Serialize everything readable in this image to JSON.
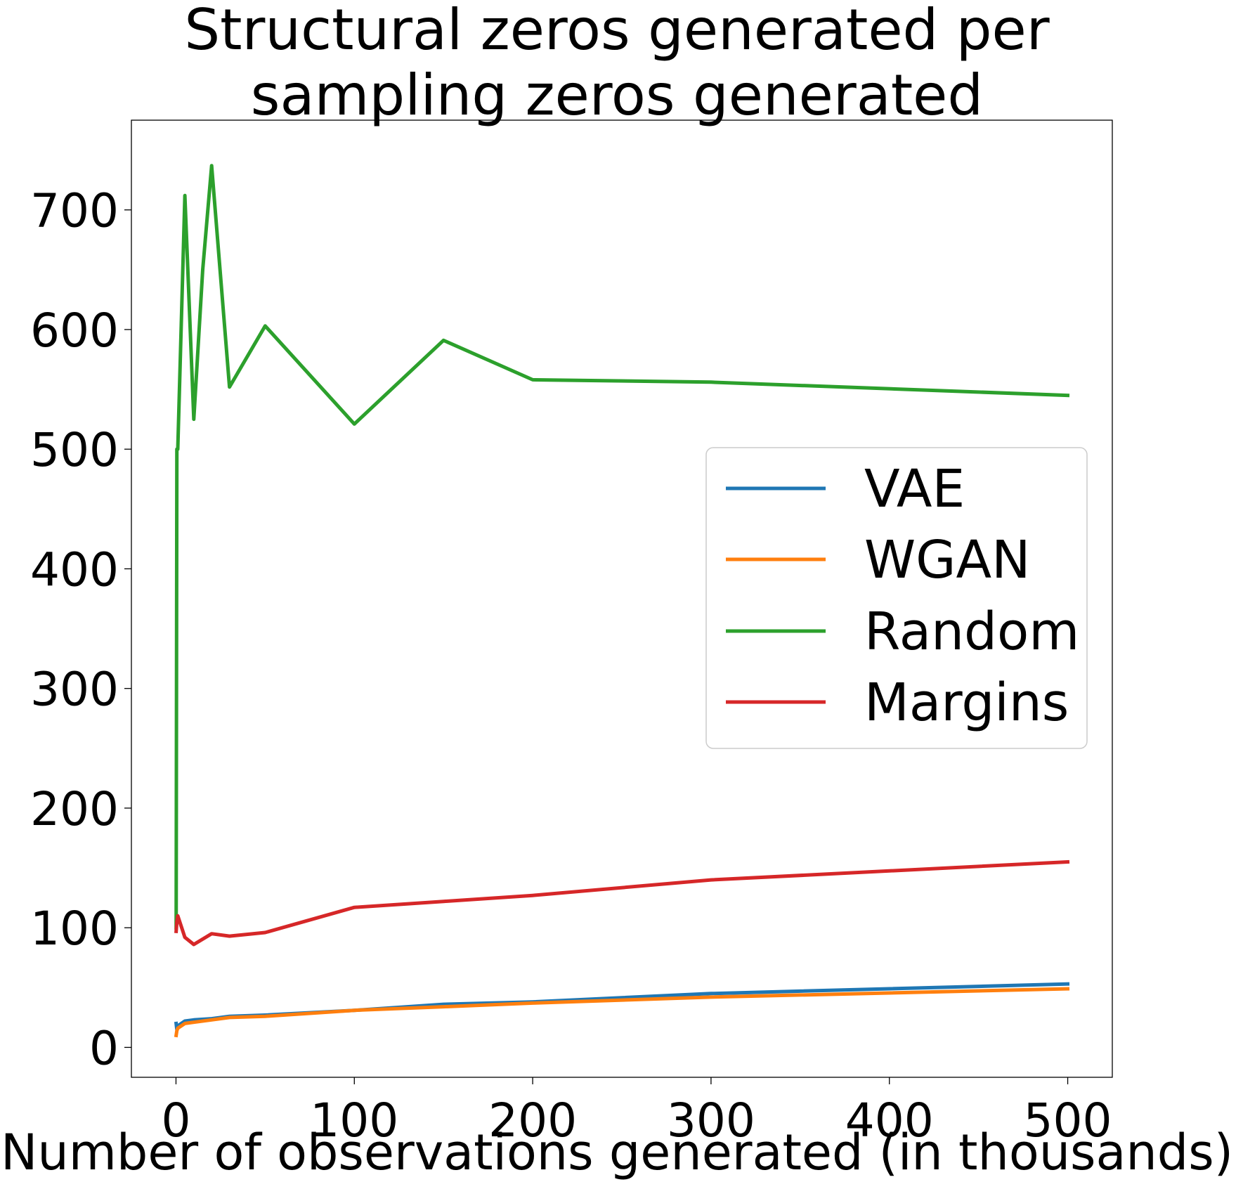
{
  "chart_data": {
    "type": "line",
    "title_lines": [
      "Structural zeros generated per",
      "sampling zeros generated"
    ],
    "xlabel": "Number of observations generated (in thousands)",
    "ylabel": "",
    "xlim": [
      -25,
      525
    ],
    "ylim": [
      -25,
      775
    ],
    "xticks": [
      0,
      100,
      200,
      300,
      400,
      500
    ],
    "yticks": [
      0,
      100,
      200,
      300,
      400,
      500,
      600,
      700
    ],
    "grid": false,
    "legend_position": "center-right",
    "series": [
      {
        "name": "VAE",
        "color": "#1f77b4",
        "x": [
          0.1,
          0.5,
          1,
          5,
          10,
          20,
          30,
          50,
          100,
          150,
          200,
          300,
          500
        ],
        "y": [
          20,
          15,
          18,
          22,
          23,
          24,
          26,
          27,
          31,
          36,
          38,
          45,
          53
        ]
      },
      {
        "name": "WGAN",
        "color": "#ff7f0e",
        "x": [
          0.1,
          0.5,
          1,
          5,
          10,
          20,
          30,
          50,
          100,
          150,
          200,
          300,
          500
        ],
        "y": [
          10,
          14,
          16,
          20,
          21,
          23,
          25,
          26,
          31,
          34,
          37,
          42,
          49
        ]
      },
      {
        "name": "Random",
        "color": "#2ca02c",
        "x": [
          0.1,
          0.5,
          1,
          5,
          10,
          15,
          20,
          30,
          50,
          100,
          150,
          200,
          300,
          500
        ],
        "y": [
          100,
          500,
          500,
          712,
          525,
          650,
          737,
          552,
          603,
          521,
          591,
          558,
          556,
          545
        ]
      },
      {
        "name": "Margins",
        "color": "#d62728",
        "x": [
          0.1,
          0.5,
          1,
          5,
          10,
          20,
          30,
          50,
          100,
          150,
          200,
          300,
          500
        ],
        "y": [
          97,
          105,
          110,
          92,
          86,
          95,
          93,
          96,
          117,
          122,
          127,
          140,
          155
        ]
      }
    ]
  }
}
